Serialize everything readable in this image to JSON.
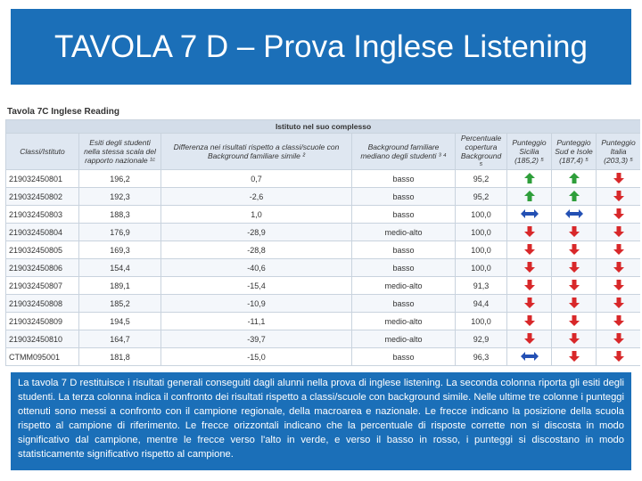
{
  "header": {
    "title": "TAVOLA 7 D – Prova Inglese Listening"
  },
  "table": {
    "title": "Tavola 7C Inglese Reading",
    "group_header": "Istituto nel suo complesso",
    "columns": [
      "Classi/Istituto",
      "Esiti degli studenti nella stessa scala del rapporto nazionale ¹ᶜ",
      "Differenza nei risultati rispetto a classi/scuole con Background familiare simile ²",
      "Background familiare mediano degli studenti ³ ⁴",
      "Percentuale copertura Background ⁵",
      "Punteggio Sicilia (185,2) ⁵",
      "Punteggio Sud e Isole (187,4) ⁵",
      "Punteggio Italia (203,3) ⁵"
    ],
    "rows": [
      [
        "219032450801",
        "196,2",
        "0,7",
        "basso",
        "95,2",
        "up",
        "up",
        "down"
      ],
      [
        "219032450802",
        "192,3",
        "-2,6",
        "basso",
        "95,2",
        "up",
        "up",
        "down"
      ],
      [
        "219032450803",
        "188,3",
        "1,0",
        "basso",
        "100,0",
        "both",
        "both",
        "down"
      ],
      [
        "219032450804",
        "176,9",
        "-28,9",
        "medio-alto",
        "100,0",
        "down",
        "down",
        "down"
      ],
      [
        "219032450805",
        "169,3",
        "-28,8",
        "basso",
        "100,0",
        "down",
        "down",
        "down"
      ],
      [
        "219032450806",
        "154,4",
        "-40,6",
        "basso",
        "100,0",
        "down",
        "down",
        "down"
      ],
      [
        "219032450807",
        "189,1",
        "-15,4",
        "medio-alto",
        "91,3",
        "down",
        "down",
        "down"
      ],
      [
        "219032450808",
        "185,2",
        "-10,9",
        "basso",
        "94,4",
        "down",
        "down",
        "down"
      ],
      [
        "219032450809",
        "194,5",
        "-11,1",
        "medio-alto",
        "100,0",
        "down",
        "down",
        "down"
      ],
      [
        "219032450810",
        "164,7",
        "-39,7",
        "medio-alto",
        "92,9",
        "down",
        "down",
        "down"
      ],
      [
        "CTMM095001",
        "181,8",
        "-15,0",
        "basso",
        "96,3",
        "both",
        "down",
        "down"
      ]
    ]
  },
  "caption": "La tavola 7 D restituisce i risultati generali conseguiti dagli alunni nella prova di inglese listening. La seconda colonna riporta gli esiti degli studenti. La terza colonna indica il confronto dei risultati rispetto a classi/scuole con background simile. Nelle ultime tre colonne i punteggi ottenuti sono messi a confronto con il campione regionale, della macroarea e nazionale. Le frecce indicano la posizione della scuola rispetto al campione di riferimento. Le frecce orizzontali indicano che la percentuale di risposte corrette non si discosta in modo significativo dal campione, mentre le frecce verso l'alto in verde, e verso il basso in rosso, i punteggi si discostano in modo statisticamente significativo rispetto al campione."
}
